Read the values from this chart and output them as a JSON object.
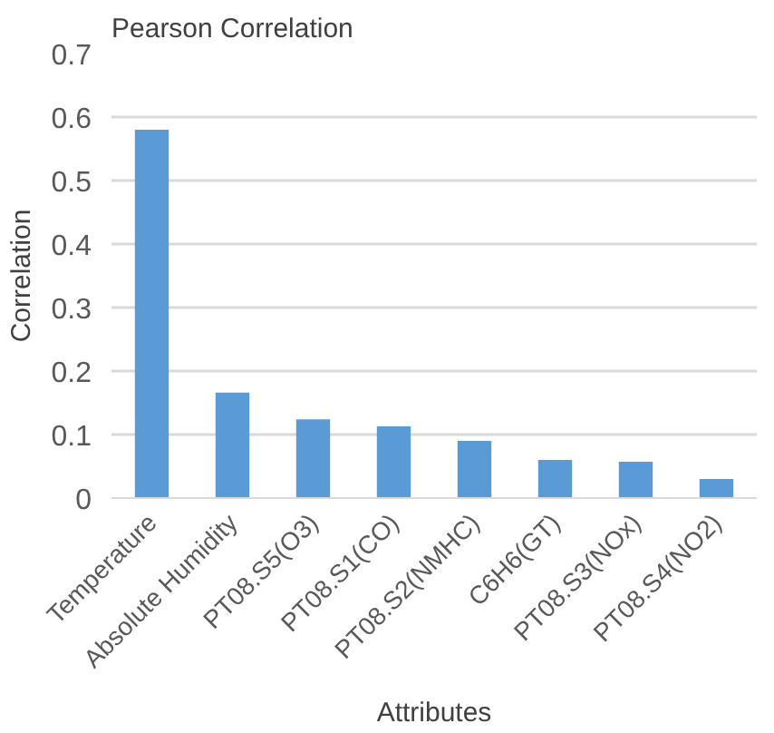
{
  "chart_data": {
    "type": "bar",
    "title": "Pearson Correlation",
    "xlabel": "Attributes",
    "ylabel": "Correlation",
    "categories": [
      "Temperature",
      "Absolute Humidity",
      "PT08.S5(O3)",
      "PT08.S1(CO)",
      "PT08.S2(NMHC)",
      "C6H6(GT)",
      "PT08.S3(NOx)",
      "PT08.S4(NO2)"
    ],
    "values": [
      0.58,
      0.166,
      0.124,
      0.113,
      0.09,
      0.06,
      0.057,
      0.03
    ],
    "color": "#5b9bd5",
    "ylim": [
      0,
      0.7
    ],
    "yticks": [
      0,
      0.1,
      0.2,
      0.3,
      0.4,
      0.5,
      0.6,
      0.7
    ],
    "grid": "y"
  }
}
